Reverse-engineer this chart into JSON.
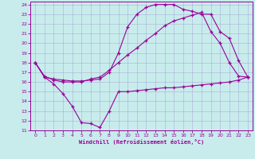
{
  "xlabel": "Windchill (Refroidissement éolien,°C)",
  "bg_color": "#c8ecec",
  "line_color": "#990099",
  "grid_color": "#a0a0d0",
  "xlim": [
    -0.5,
    23.5
  ],
  "ylim": [
    11,
    24.3
  ],
  "xticks": [
    0,
    1,
    2,
    3,
    4,
    5,
    6,
    7,
    8,
    9,
    10,
    11,
    12,
    13,
    14,
    15,
    16,
    17,
    18,
    19,
    20,
    21,
    22,
    23
  ],
  "yticks": [
    11,
    12,
    13,
    14,
    15,
    16,
    17,
    18,
    19,
    20,
    21,
    22,
    23,
    24
  ],
  "line1_x": [
    0,
    1,
    2,
    3,
    4,
    5,
    6,
    7,
    8,
    9,
    10,
    11,
    12,
    13,
    14,
    15,
    16,
    17,
    18,
    19,
    20,
    21,
    22,
    23
  ],
  "line1_y": [
    18.0,
    16.5,
    15.8,
    14.8,
    13.5,
    11.8,
    11.7,
    11.3,
    13.0,
    15.0,
    15.0,
    15.1,
    15.2,
    15.3,
    15.4,
    15.4,
    15.5,
    15.6,
    15.7,
    15.8,
    15.9,
    16.0,
    16.2,
    16.5
  ],
  "line2_x": [
    0,
    1,
    2,
    3,
    4,
    5,
    6,
    7,
    8,
    9,
    10,
    11,
    12,
    13,
    14,
    15,
    16,
    17,
    18,
    19,
    20,
    21,
    22,
    23
  ],
  "line2_y": [
    18.0,
    16.6,
    16.2,
    16.0,
    16.0,
    16.0,
    16.3,
    16.5,
    17.2,
    18.0,
    18.8,
    19.5,
    20.3,
    21.0,
    21.8,
    22.3,
    22.6,
    22.9,
    23.2,
    21.2,
    20.0,
    18.0,
    16.6,
    16.5
  ],
  "line3_x": [
    0,
    1,
    2,
    3,
    4,
    5,
    6,
    7,
    8,
    9,
    10,
    11,
    12,
    13,
    14,
    15,
    16,
    17,
    18,
    19,
    20,
    21,
    22,
    23
  ],
  "line3_y": [
    18.0,
    16.5,
    16.3,
    16.2,
    16.1,
    16.1,
    16.2,
    16.3,
    17.0,
    19.0,
    21.7,
    23.0,
    23.7,
    24.0,
    24.0,
    24.0,
    23.5,
    23.3,
    23.0,
    23.0,
    21.2,
    20.5,
    18.2,
    16.5
  ]
}
